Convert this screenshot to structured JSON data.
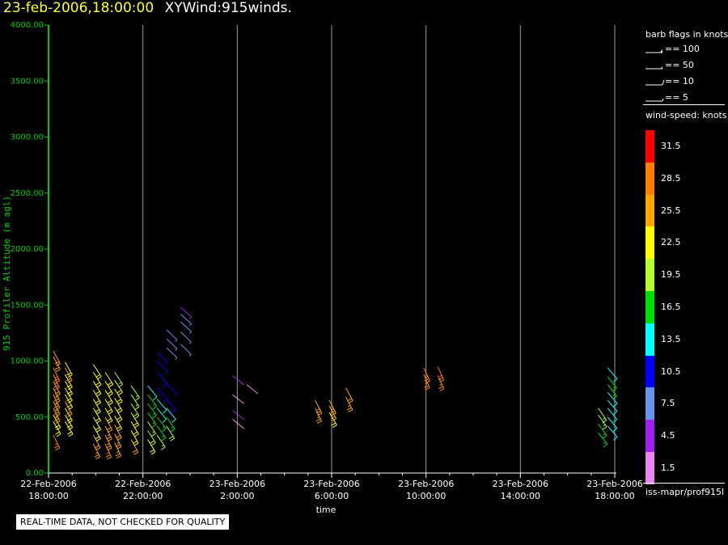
{
  "header": {
    "date_text": "23-feb-2006,18:00:00",
    "title_text": "XYWind:915winds."
  },
  "legend": {
    "barb_title": "barb flags in knots",
    "barbs": [
      {
        "label": "== 100",
        "kind": "flag100"
      },
      {
        "label": "== 50",
        "kind": "flag50"
      },
      {
        "label": "== 10",
        "kind": "barb10"
      },
      {
        "label": "== 5",
        "kind": "barb5"
      }
    ],
    "speed_title": "wind-speed: knots",
    "speed_levels": [
      {
        "label": "31.5",
        "color": "#ff0000"
      },
      {
        "label": "28.5",
        "color": "#ff8000"
      },
      {
        "label": "25.5",
        "color": "#ffa500"
      },
      {
        "label": "22.5",
        "color": "#ffff00"
      },
      {
        "label": "19.5",
        "color": "#adff2f"
      },
      {
        "label": "16.5",
        "color": "#00dd00"
      },
      {
        "label": "13.5",
        "color": "#00ffff"
      },
      {
        "label": "10.5",
        "color": "#0000ff"
      },
      {
        "label": "7.5",
        "color": "#6495ed"
      },
      {
        "label": "4.5",
        "color": "#a020f0"
      },
      {
        "label": "1.5",
        "color": "#ee82ee"
      }
    ],
    "source_text": "iss-mapr/prof915l"
  },
  "quality_note": "REAL-TIME DATA, NOT CHECKED FOR QUALITY",
  "chart_data": {
    "type": "scatter",
    "title": "XYWind:915winds.",
    "xlabel": "time",
    "ylabel": "915 Profiler Altitude (m agl)",
    "ylim": [
      0,
      4000
    ],
    "yticks": [
      "0.00",
      "500.00",
      "1000.00",
      "1500.00",
      "2000.00",
      "2500.00",
      "3000.00",
      "3500.00",
      "4000.00"
    ],
    "xlim_hours": [
      0,
      24
    ],
    "xticks": [
      {
        "date": "22-Feb-2006",
        "time": "18:00:00"
      },
      {
        "date": "22-Feb-2006",
        "time": "22:00:00"
      },
      {
        "date": "23-Feb-2006",
        "time": "2:00:00"
      },
      {
        "date": "23-Feb-2006",
        "time": "6:00:00"
      },
      {
        "date": "23-Feb-2006",
        "time": "10:00:00"
      },
      {
        "date": "23-Feb-2006",
        "time": "14:00:00"
      },
      {
        "date": "23-Feb-2006",
        "time": "18:00:00"
      }
    ],
    "grid": "vertical",
    "series": [
      {
        "hours": 0.2,
        "points": [
          [
            340,
            26,
            "#ff8000"
          ],
          [
            460,
            22,
            "#ffff00"
          ],
          [
            520,
            23,
            "#ffff00"
          ],
          [
            580,
            25,
            "#ffa500"
          ],
          [
            640,
            25,
            "#ffa500"
          ],
          [
            700,
            26,
            "#ffa500"
          ],
          [
            760,
            25,
            "#ffa500"
          ],
          [
            820,
            24,
            "#ffa500"
          ],
          [
            880,
            27,
            "#ff8000"
          ],
          [
            940,
            26,
            "#ff8000"
          ],
          [
            1040,
            24,
            "#ffa500"
          ],
          [
            1090,
            24,
            "#ffa500"
          ]
        ]
      },
      {
        "hours": 0.7,
        "points": [
          [
            460,
            21,
            "#ffff00"
          ],
          [
            520,
            22,
            "#ffff00"
          ],
          [
            580,
            23,
            "#ffff00"
          ],
          [
            640,
            24,
            "#ffa500"
          ],
          [
            700,
            22,
            "#ffff00"
          ],
          [
            760,
            23,
            "#ffff00"
          ],
          [
            820,
            22,
            "#ffff00"
          ],
          [
            880,
            23,
            "#ffff00"
          ],
          [
            940,
            24,
            "#ffa500"
          ],
          [
            990,
            23,
            "#ffff00"
          ]
        ]
      },
      {
        "hours": 1.9,
        "points": [
          [
            260,
            25,
            "#ffa500"
          ],
          [
            340,
            24,
            "#ffa500"
          ],
          [
            420,
            23,
            "#ffff00"
          ],
          [
            500,
            22,
            "#ffff00"
          ],
          [
            580,
            22,
            "#ffff00"
          ],
          [
            660,
            23,
            "#ffff00"
          ],
          [
            740,
            22,
            "#ffff00"
          ],
          [
            820,
            21,
            "#ffff00"
          ],
          [
            900,
            21,
            "#ffff00"
          ],
          [
            970,
            20,
            "#ffff00"
          ]
        ]
      },
      {
        "hours": 2.4,
        "points": [
          [
            260,
            27,
            "#ff8000"
          ],
          [
            340,
            26,
            "#ffa500"
          ],
          [
            420,
            25,
            "#ffa500"
          ],
          [
            500,
            24,
            "#ffa500"
          ],
          [
            580,
            23,
            "#ffff00"
          ],
          [
            660,
            22,
            "#ffff00"
          ],
          [
            740,
            21,
            "#ffff00"
          ],
          [
            820,
            21,
            "#ffff00"
          ],
          [
            900,
            20,
            "#ffff00"
          ]
        ]
      },
      {
        "hours": 2.8,
        "points": [
          [
            270,
            26,
            "#ffa500"
          ],
          [
            350,
            25,
            "#ffa500"
          ],
          [
            430,
            24,
            "#ffa500"
          ],
          [
            510,
            23,
            "#ffff00"
          ],
          [
            590,
            22,
            "#ffff00"
          ],
          [
            670,
            22,
            "#ffff00"
          ],
          [
            750,
            21,
            "#ffff00"
          ],
          [
            830,
            20,
            "#ffff00"
          ],
          [
            900,
            19,
            "#adff2f"
          ]
        ]
      },
      {
        "hours": 3.5,
        "points": [
          [
            300,
            24,
            "#ffa500"
          ],
          [
            380,
            23,
            "#ffff00"
          ],
          [
            460,
            22,
            "#ffff00"
          ],
          [
            540,
            21,
            "#ffff00"
          ],
          [
            620,
            20,
            "#adff2f"
          ],
          [
            700,
            19,
            "#adff2f"
          ],
          [
            780,
            18,
            "#adff2f"
          ]
        ]
      },
      {
        "hours": 4.2,
        "points": [
          [
            300,
            21,
            "#ffff00"
          ],
          [
            380,
            20,
            "#adff2f"
          ],
          [
            460,
            19,
            "#adff2f"
          ],
          [
            540,
            17,
            "#00dd00"
          ],
          [
            620,
            16,
            "#00dd00"
          ],
          [
            700,
            15,
            "#00dd00"
          ],
          [
            780,
            14,
            "#00ffff"
          ]
        ]
      },
      {
        "hours": 4.6,
        "points": [
          [
            340,
            19,
            "#adff2f"
          ],
          [
            420,
            17,
            "#00dd00"
          ],
          [
            500,
            15,
            "#00dd00"
          ],
          [
            580,
            14,
            "#00ffff"
          ],
          [
            660,
            13,
            "#00ffff"
          ],
          [
            760,
            11,
            "#0000ff"
          ],
          [
            900,
            10,
            "#0000ff"
          ],
          [
            1000,
            9,
            "#0000ff"
          ],
          [
            1080,
            9,
            "#0000ff"
          ]
        ]
      },
      {
        "hours": 5.0,
        "points": [
          [
            420,
            20,
            "#adff2f"
          ],
          [
            500,
            18,
            "#00dd00"
          ],
          [
            580,
            14,
            "#00ffff"
          ],
          [
            660,
            12,
            "#0000ff"
          ],
          [
            800,
            9,
            "#0000ff"
          ],
          [
            1120,
            8,
            "#6495ed"
          ],
          [
            1200,
            8,
            "#6495ed"
          ],
          [
            1280,
            8,
            "#6495ed"
          ]
        ]
      },
      {
        "hours": 5.6,
        "points": [
          [
            1150,
            8,
            "#6495ed"
          ],
          [
            1260,
            8,
            "#6495ed"
          ],
          [
            1350,
            7,
            "#6495ed"
          ],
          [
            1420,
            7,
            "#6495ed"
          ],
          [
            1480,
            6,
            "#a020f0"
          ]
        ]
      },
      {
        "hours": 7.8,
        "points": [
          [
            480,
            4,
            "#ee82ee"
          ],
          [
            560,
            4,
            "#a020f0"
          ],
          [
            700,
            3,
            "#ee82ee"
          ],
          [
            870,
            4,
            "#a020f0"
          ]
        ]
      },
      {
        "hours": 8.4,
        "points": [
          [
            790,
            4,
            "#ee82ee"
          ]
        ]
      },
      {
        "hours": 11.3,
        "points": [
          [
            580,
            26,
            "#ffa500"
          ],
          [
            650,
            25,
            "#ffa500"
          ]
        ]
      },
      {
        "hours": 11.9,
        "points": [
          [
            540,
            22,
            "#ffff00"
          ],
          [
            600,
            24,
            "#ffa500"
          ],
          [
            650,
            25,
            "#ffa500"
          ]
        ]
      },
      {
        "hours": 12.6,
        "points": [
          [
            680,
            25,
            "#ffa500"
          ],
          [
            760,
            24,
            "#ffa500"
          ]
        ]
      },
      {
        "hours": 15.9,
        "points": [
          [
            880,
            28,
            "#ff8000"
          ],
          [
            940,
            27,
            "#ff8000"
          ]
        ]
      },
      {
        "hours": 16.5,
        "points": [
          [
            870,
            27,
            "#ff8000"
          ],
          [
            950,
            28,
            "#ff8000"
          ]
        ]
      },
      {
        "hours": 23.3,
        "points": [
          [
            360,
            15,
            "#00dd00"
          ],
          [
            440,
            17,
            "#00dd00"
          ],
          [
            520,
            18,
            "#adff2f"
          ],
          [
            580,
            19,
            "#adff2f"
          ]
        ]
      },
      {
        "hours": 23.7,
        "points": [
          [
            420,
            13,
            "#00ffff"
          ],
          [
            500,
            14,
            "#00ffff"
          ],
          [
            580,
            14,
            "#00ffff"
          ],
          [
            650,
            13,
            "#00ffff"
          ],
          [
            720,
            13,
            "#00ffff"
          ],
          [
            790,
            15,
            "#00dd00"
          ],
          [
            860,
            15,
            "#00dd00"
          ],
          [
            940,
            13,
            "#00ffff"
          ]
        ]
      }
    ]
  }
}
